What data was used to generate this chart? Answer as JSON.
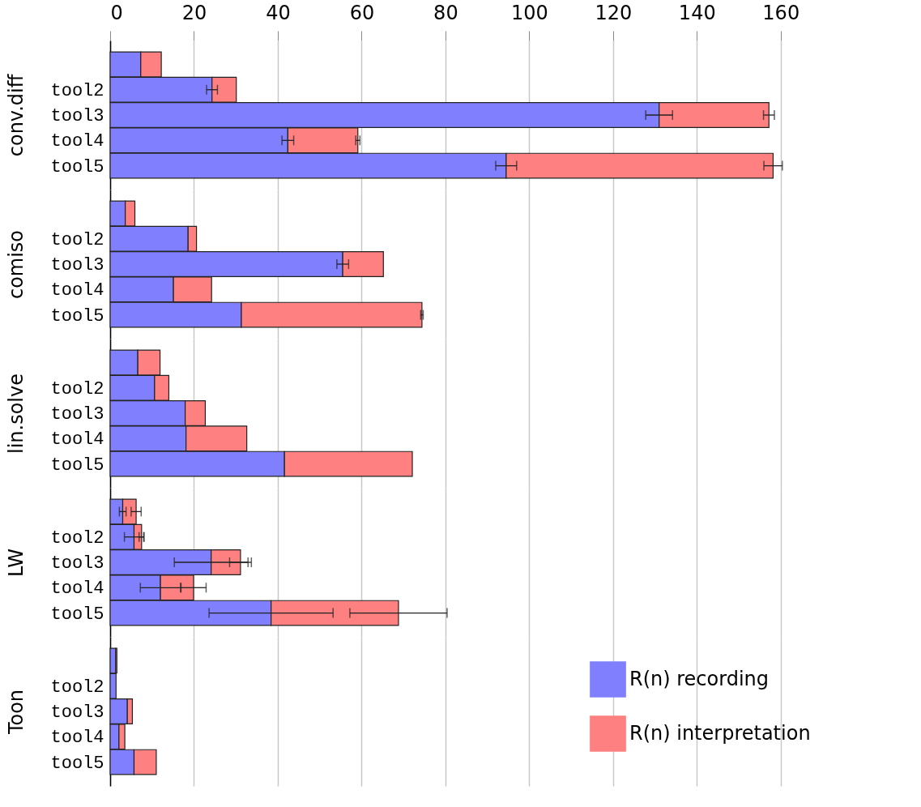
{
  "chart_data": [
    {
      "type": "bar",
      "orientation": "horizontal",
      "stacked": true,
      "ylabel": "conv.diff",
      "categories": [
        null,
        "tool2",
        "tool3",
        "tool4",
        "tool5"
      ],
      "xlim": [
        0,
        173
      ],
      "xticks": [
        0,
        20,
        40,
        60,
        80,
        100,
        120,
        140,
        160
      ],
      "grid": "x",
      "series": [
        {
          "color": "#8080ff",
          "values": [
            7.3,
            24.3,
            131,
            42.4,
            94.5
          ],
          "errors": [
            null,
            1.3,
            3.2,
            1.4,
            2.5
          ]
        },
        {
          "color": "#ff8080",
          "values": [
            4.9,
            5.8,
            26.2,
            16.7,
            63.7
          ],
          "errors": [
            null,
            null,
            1.3,
            0.5,
            2.2
          ]
        }
      ]
    },
    {
      "type": "bar",
      "orientation": "horizontal",
      "stacked": true,
      "ylabel": "comiso",
      "categories": [
        null,
        "tool2",
        "tool3",
        "tool4",
        "tool5"
      ],
      "xlim": [
        0,
        173
      ],
      "xticks": [
        0,
        20,
        40,
        60,
        80,
        100,
        120,
        140,
        160
      ],
      "grid": "x",
      "tick_labels": "y",
      "series": [
        {
          "color": "#8080ff",
          "values": [
            3.6,
            18.6,
            55.5,
            15.1,
            31.3
          ],
          "errors": [
            null,
            null,
            1.4,
            null,
            null
          ]
        },
        {
          "color": "#ff8080",
          "values": [
            2.3,
            2.0,
            9.7,
            9.1,
            43.1
          ],
          "errors": [
            null,
            null,
            null,
            null,
            0.3
          ]
        }
      ]
    },
    {
      "type": "bar",
      "orientation": "horizontal",
      "stacked": true,
      "ylabel": "lin.solve",
      "categories": [
        null,
        "tool2",
        "tool3",
        "tool4",
        "tool5"
      ],
      "xlim": [
        0,
        173
      ],
      "xticks": [
        0,
        20,
        40,
        60,
        80,
        100,
        120,
        140,
        160
      ],
      "grid": "x",
      "tick_labels": "y",
      "series": [
        {
          "color": "#8080ff",
          "values": [
            6.6,
            10.6,
            17.9,
            18.1,
            41.6
          ]
        },
        {
          "color": "#ff8080",
          "values": [
            5.3,
            3.4,
            4.8,
            14.5,
            30.5
          ]
        }
      ]
    },
    {
      "type": "bar",
      "orientation": "horizontal",
      "stacked": true,
      "ylabel": "LW",
      "categories": [
        null,
        "tool2",
        "tool3",
        "tool4",
        "tool5"
      ],
      "xlim": [
        0,
        173
      ],
      "xticks": [
        0,
        20,
        40,
        60,
        80,
        100,
        120,
        140,
        160
      ],
      "grid": "x",
      "tick_labels": "y",
      "series": [
        {
          "color": "#8080ff",
          "values": [
            3.0,
            5.7,
            24.1,
            12.0,
            38.4
          ],
          "errors": [
            0.8,
            2.3,
            8.8,
            4.8,
            14.8
          ]
        },
        {
          "color": "#ff8080",
          "values": [
            3.2,
            1.8,
            7.0,
            7.9,
            30.4
          ],
          "errors": [
            1.2,
            0.6,
            2.6,
            3.0,
            11.6
          ]
        }
      ]
    },
    {
      "type": "bar",
      "orientation": "horizontal",
      "stacked": true,
      "ylabel": "Toon",
      "categories": [
        null,
        "tool2",
        "tool3",
        "tool4",
        "tool5"
      ],
      "xlim": [
        0,
        173
      ],
      "xticks": [
        0,
        20,
        40,
        60,
        80,
        100,
        120,
        140,
        160
      ],
      "grid": "x",
      "tick_labels": "y",
      "legend": "top right",
      "series": [
        {
          "name": "R(n) recording",
          "color": "#8080ff",
          "values": [
            1.3,
            1.4,
            4.1,
            2.1,
            5.7
          ]
        },
        {
          "name": "R(n) interpretation",
          "color": "#ff8080",
          "values": [
            0.3,
            null,
            1.2,
            1.4,
            5.3
          ]
        }
      ]
    }
  ]
}
